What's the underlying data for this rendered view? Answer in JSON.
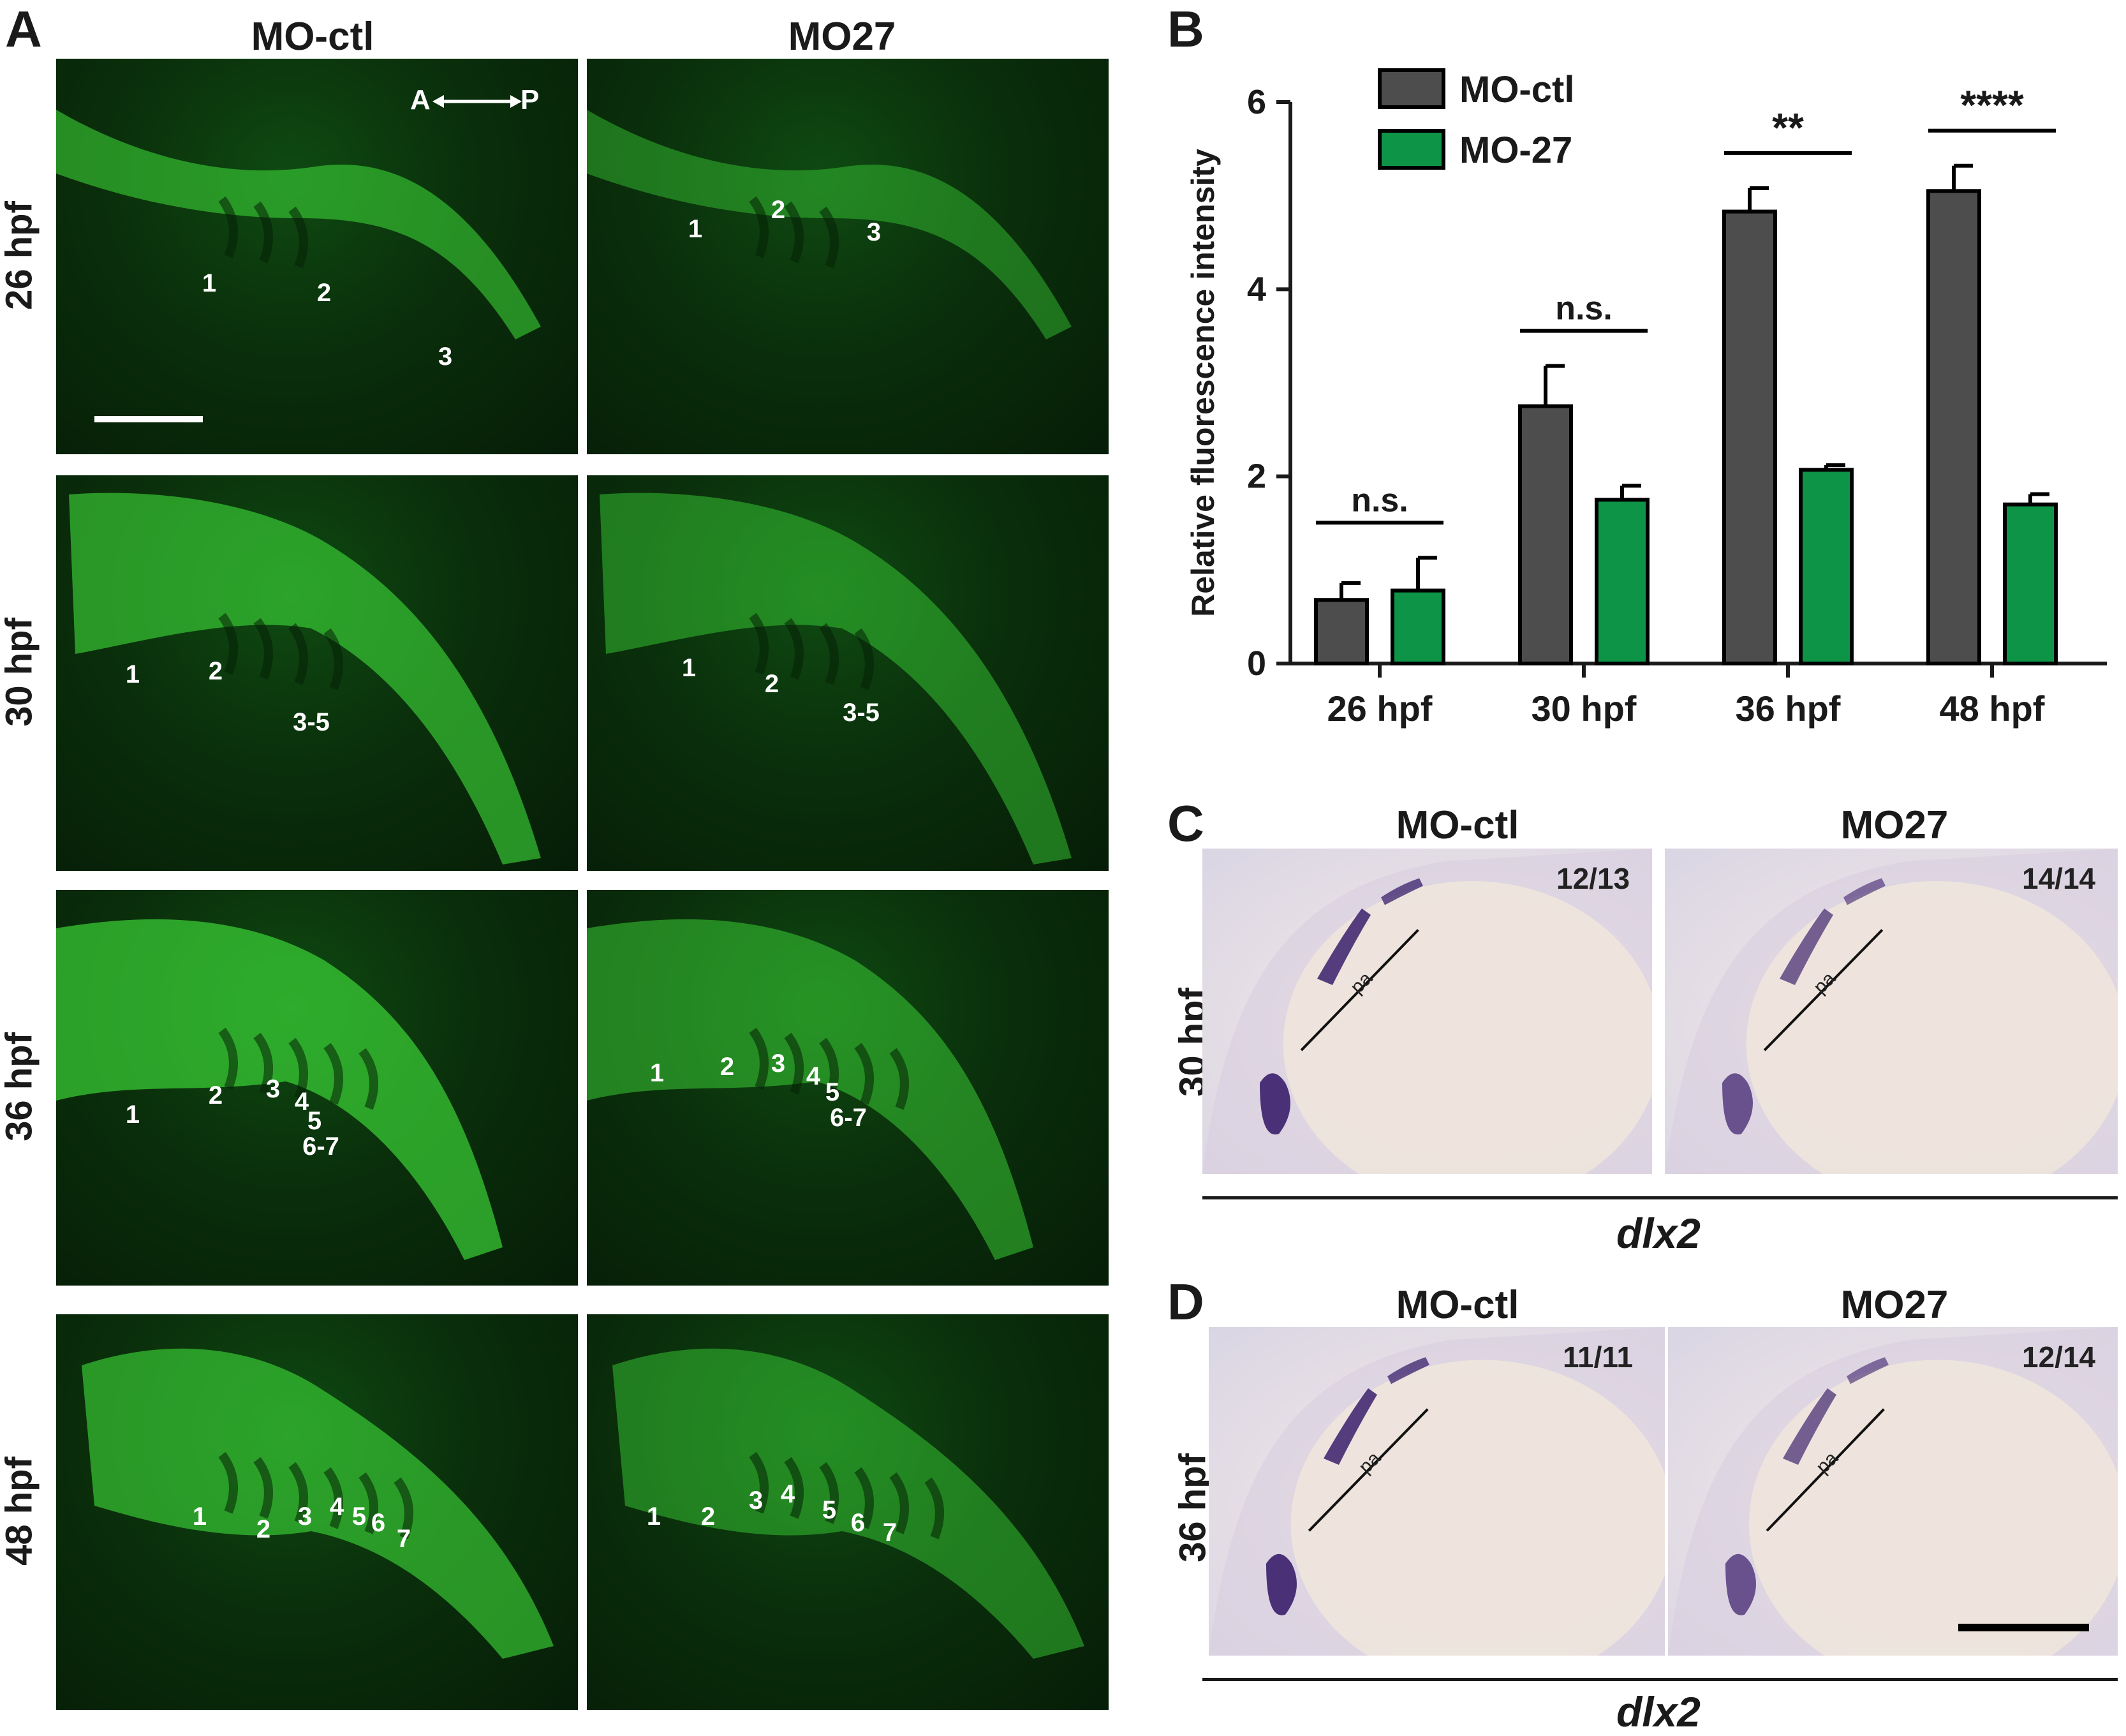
{
  "panel_a": {
    "letter": "A",
    "col_headers": [
      "MO-ctl",
      "MO27"
    ],
    "rows": [
      {
        "label": "26 hpf",
        "ctl_arches": [
          "1",
          "2",
          "3"
        ],
        "mo_arches": [
          "1",
          "2",
          "3"
        ]
      },
      {
        "label": "30 hpf",
        "ctl_arches": [
          "1",
          "2",
          "3-5"
        ],
        "mo_arches": [
          "1",
          "2",
          "3-5"
        ]
      },
      {
        "label": "36 hpf",
        "ctl_arches": [
          "1",
          "2",
          "3",
          "4",
          "5",
          "6-7"
        ],
        "mo_arches": [
          "1",
          "2",
          "3",
          "4",
          "5",
          "6-7"
        ]
      },
      {
        "label": "48 hpf",
        "ctl_arches": [
          "1",
          "2",
          "3",
          "4",
          "5",
          "6",
          "7"
        ],
        "mo_arches": [
          "1",
          "2",
          "3",
          "4",
          "5",
          "6",
          "7"
        ]
      }
    ],
    "axis_a": "A",
    "axis_p": "P"
  },
  "panel_b": {
    "letter": "B"
  },
  "chart_data": {
    "type": "bar",
    "categories": [
      "26 hpf",
      "30 hpf",
      "36 hpf",
      "48 hpf"
    ],
    "series": [
      {
        "name": "MO-ctl",
        "color": "#4d4d4d",
        "values": [
          0.68,
          2.75,
          4.83,
          5.05
        ],
        "errors": [
          0.18,
          0.43,
          0.25,
          0.27
        ]
      },
      {
        "name": "MO-27",
        "color": "#0e9447",
        "values": [
          0.78,
          1.75,
          2.07,
          1.7
        ],
        "errors": [
          0.35,
          0.15,
          0.05,
          0.11
        ]
      }
    ],
    "significance": [
      "n.s.",
      "n.s.",
      "**",
      "****"
    ],
    "ylabel": "Relative fluorescence intensity",
    "xlabel": "",
    "ylim": [
      0,
      6
    ],
    "yticks": [
      0,
      2,
      4,
      6
    ],
    "legend": "top-left",
    "grid": false
  },
  "panel_c": {
    "letter": "C",
    "stage": "30 hpf",
    "col_headers": [
      "MO-ctl",
      "MO27"
    ],
    "ratios": [
      "12/13",
      "14/14"
    ],
    "pa_label": "pa",
    "gene": "dlx2"
  },
  "panel_d": {
    "letter": "D",
    "stage": "36 hpf",
    "col_headers": [
      "MO-ctl",
      "MO27"
    ],
    "ratios": [
      "11/11",
      "12/14"
    ],
    "pa_label": "pa",
    "gene": "dlx2"
  },
  "colors": {
    "fluor_green": "#3fe03a",
    "ish_stain": "#3a1f6b",
    "ctl_bar": "#4d4d4d",
    "mo_bar": "#0e9447"
  }
}
